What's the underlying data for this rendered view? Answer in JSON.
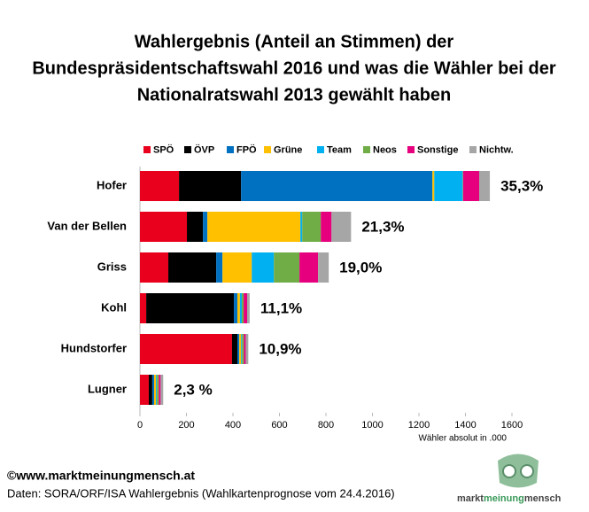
{
  "chart_data": {
    "type": "stacked_barh",
    "title": [
      "Wahlergebnis (Anteil an Stimmen) der",
      "Bundespräsidentschaftswahl 2016 und was die Wähler bei der",
      "Nationalratswahl 2013 gewählt haben"
    ],
    "categories": [
      "Hofer",
      "Van der Bellen",
      "Griss",
      "Kohl",
      "Hundstorfer",
      "Lugner"
    ],
    "series": [
      {
        "name": "SPÖ",
        "color": "#e8001c",
        "values": [
          168,
          202,
          122,
          27,
          396,
          38
        ]
      },
      {
        "name": "ÖVP",
        "color": "#000000",
        "values": [
          267,
          69,
          206,
          377,
          23,
          15
        ]
      },
      {
        "name": "FPÖ",
        "color": "#0070c0",
        "values": [
          823,
          19,
          27,
          15,
          8,
          8
        ]
      },
      {
        "name": "Grüne",
        "color": "#ffc000",
        "values": [
          8,
          400,
          126,
          11,
          8,
          8
        ]
      },
      {
        "name": "Team",
        "color": "#00b0f0",
        "values": [
          122,
          8,
          95,
          8,
          4,
          4
        ]
      },
      {
        "name": "Neos",
        "color": "#70ad47",
        "values": [
          2,
          80,
          110,
          8,
          8,
          8
        ]
      },
      {
        "name": "Sonstige",
        "color": "#e6007e",
        "values": [
          69,
          46,
          80,
          15,
          8,
          8
        ]
      },
      {
        "name": "Nichtw.",
        "color": "#a6a6a6",
        "values": [
          46,
          84,
          46,
          11,
          11,
          11
        ]
      }
    ],
    "bar_labels": [
      "35,3%",
      "21,3%",
      "19,0%",
      "11,1%",
      "10,9%",
      "2,3 %"
    ],
    "xlim": [
      0,
      1600
    ],
    "xticks": [
      0,
      200,
      400,
      600,
      800,
      1000,
      1200,
      1400,
      1600
    ],
    "xlabel": "Wähler absolut in .000",
    "legend": "top"
  },
  "footer": {
    "copyright": "©www.marktmeinungmensch.at",
    "source": "Daten: SORA/ORF/ISA Wahlergebnis (Wahlkartenprognose vom 24.4.2016)"
  },
  "logo": {
    "parts": [
      "markt",
      "meinung",
      "mensch"
    ]
  }
}
